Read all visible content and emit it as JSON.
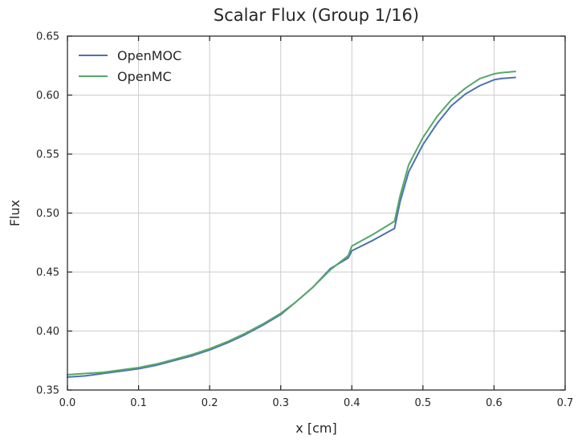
{
  "chart_data": {
    "type": "line",
    "title": "Scalar Flux (Group 1/16)",
    "xlabel": "x [cm]",
    "ylabel": "Flux",
    "xlim": [
      0.0,
      0.7
    ],
    "ylim": [
      0.35,
      0.65
    ],
    "xticks": [
      0.0,
      0.1,
      0.2,
      0.3,
      0.4,
      0.5,
      0.6,
      0.7
    ],
    "xtick_labels": [
      "0.0",
      "0.1",
      "0.2",
      "0.3",
      "0.4",
      "0.5",
      "0.6",
      "0.7"
    ],
    "yticks": [
      0.35,
      0.4,
      0.45,
      0.5,
      0.55,
      0.6,
      0.65
    ],
    "ytick_labels": [
      "0.35",
      "0.40",
      "0.45",
      "0.50",
      "0.55",
      "0.60",
      "0.65"
    ],
    "grid": true,
    "legend_position": "top-left",
    "series": [
      {
        "name": "OpenMOC",
        "color": "#4c72b0",
        "x": [
          0.0,
          0.025,
          0.05,
          0.075,
          0.1,
          0.125,
          0.15,
          0.175,
          0.2,
          0.225,
          0.25,
          0.275,
          0.3,
          0.32,
          0.345,
          0.37,
          0.395,
          0.4,
          0.43,
          0.46,
          0.468,
          0.48,
          0.5,
          0.52,
          0.54,
          0.56,
          0.58,
          0.6,
          0.61,
          0.63
        ],
        "y": [
          0.361,
          0.362,
          0.364,
          0.366,
          0.368,
          0.371,
          0.375,
          0.379,
          0.384,
          0.39,
          0.397,
          0.405,
          0.414,
          0.424,
          0.437,
          0.453,
          0.462,
          0.468,
          0.477,
          0.487,
          0.51,
          0.535,
          0.558,
          0.576,
          0.591,
          0.601,
          0.608,
          0.613,
          0.614,
          0.615
        ]
      },
      {
        "name": "OpenMC",
        "color": "#55a868",
        "x": [
          0.0,
          0.025,
          0.05,
          0.075,
          0.1,
          0.125,
          0.15,
          0.175,
          0.2,
          0.225,
          0.25,
          0.275,
          0.3,
          0.32,
          0.345,
          0.37,
          0.395,
          0.4,
          0.43,
          0.46,
          0.468,
          0.48,
          0.5,
          0.52,
          0.54,
          0.56,
          0.58,
          0.6,
          0.61,
          0.63
        ],
        "y": [
          0.363,
          0.364,
          0.365,
          0.367,
          0.369,
          0.372,
          0.376,
          0.38,
          0.385,
          0.391,
          0.398,
          0.406,
          0.415,
          0.424,
          0.437,
          0.452,
          0.464,
          0.472,
          0.482,
          0.493,
          0.515,
          0.541,
          0.564,
          0.582,
          0.596,
          0.606,
          0.614,
          0.618,
          0.619,
          0.62
        ]
      }
    ]
  }
}
